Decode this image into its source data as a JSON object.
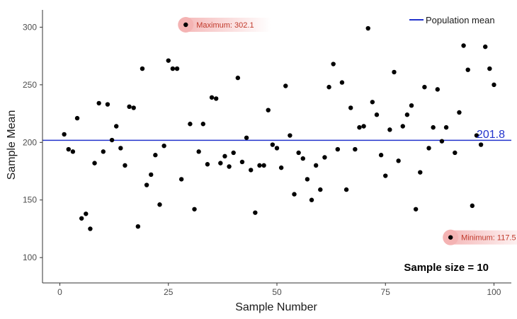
{
  "chart_data": {
    "type": "scatter",
    "xlabel": "Sample Number",
    "ylabel": "Sample Mean",
    "xlim": [
      -4,
      104
    ],
    "ylim": [
      78,
      315
    ],
    "x_ticks": [
      0,
      25,
      50,
      75,
      100
    ],
    "y_ticks": [
      100,
      150,
      200,
      250,
      300
    ],
    "grid": false,
    "legend": {
      "position": "top-right",
      "entries": [
        "Population mean"
      ]
    },
    "population_mean": {
      "label": "Population mean",
      "value": 201.8,
      "value_text": "201.8"
    },
    "annotations": {
      "maximum": {
        "label": "Maximum: 302.1",
        "x": 29,
        "y": 302.1
      },
      "minimum": {
        "label": "Minimum: 117.5",
        "x": 90,
        "y": 117.5
      }
    },
    "sample_size_text": "Sample size = 10",
    "colors": {
      "points": "#000000",
      "mean_line": "#2233cc",
      "annotation_text": "#c0392b",
      "annotation_glow": "#f4b3b3",
      "axis": "#333333"
    },
    "points": [
      {
        "x": 1,
        "y": 207
      },
      {
        "x": 2,
        "y": 194
      },
      {
        "x": 3,
        "y": 192
      },
      {
        "x": 4,
        "y": 221
      },
      {
        "x": 5,
        "y": 134
      },
      {
        "x": 6,
        "y": 138
      },
      {
        "x": 7,
        "y": 125
      },
      {
        "x": 8,
        "y": 182
      },
      {
        "x": 9,
        "y": 234
      },
      {
        "x": 10,
        "y": 192
      },
      {
        "x": 11,
        "y": 233
      },
      {
        "x": 12,
        "y": 202
      },
      {
        "x": 13,
        "y": 214
      },
      {
        "x": 14,
        "y": 195
      },
      {
        "x": 15,
        "y": 180
      },
      {
        "x": 16,
        "y": 231
      },
      {
        "x": 17,
        "y": 230
      },
      {
        "x": 18,
        "y": 127
      },
      {
        "x": 19,
        "y": 264
      },
      {
        "x": 20,
        "y": 163
      },
      {
        "x": 21,
        "y": 172
      },
      {
        "x": 22,
        "y": 189
      },
      {
        "x": 23,
        "y": 146
      },
      {
        "x": 24,
        "y": 197
      },
      {
        "x": 25,
        "y": 271
      },
      {
        "x": 26,
        "y": 264
      },
      {
        "x": 27,
        "y": 264
      },
      {
        "x": 28,
        "y": 168
      },
      {
        "x": 29,
        "y": 302.1
      },
      {
        "x": 30,
        "y": 216
      },
      {
        "x": 31,
        "y": 142
      },
      {
        "x": 32,
        "y": 192
      },
      {
        "x": 33,
        "y": 216
      },
      {
        "x": 34,
        "y": 181
      },
      {
        "x": 35,
        "y": 239
      },
      {
        "x": 36,
        "y": 238
      },
      {
        "x": 37,
        "y": 182
      },
      {
        "x": 38,
        "y": 188
      },
      {
        "x": 39,
        "y": 179
      },
      {
        "x": 40,
        "y": 191
      },
      {
        "x": 41,
        "y": 256
      },
      {
        "x": 42,
        "y": 183
      },
      {
        "x": 43,
        "y": 204
      },
      {
        "x": 44,
        "y": 176
      },
      {
        "x": 45,
        "y": 139
      },
      {
        "x": 46,
        "y": 180
      },
      {
        "x": 47,
        "y": 180
      },
      {
        "x": 48,
        "y": 228
      },
      {
        "x": 49,
        "y": 198
      },
      {
        "x": 50,
        "y": 195
      },
      {
        "x": 51,
        "y": 178
      },
      {
        "x": 52,
        "y": 249
      },
      {
        "x": 53,
        "y": 206
      },
      {
        "x": 54,
        "y": 155
      },
      {
        "x": 55,
        "y": 191
      },
      {
        "x": 56,
        "y": 186
      },
      {
        "x": 57,
        "y": 168
      },
      {
        "x": 58,
        "y": 150
      },
      {
        "x": 59,
        "y": 180
      },
      {
        "x": 60,
        "y": 159
      },
      {
        "x": 61,
        "y": 187
      },
      {
        "x": 62,
        "y": 248
      },
      {
        "x": 63,
        "y": 268
      },
      {
        "x": 64,
        "y": 194
      },
      {
        "x": 65,
        "y": 252
      },
      {
        "x": 66,
        "y": 159
      },
      {
        "x": 67,
        "y": 230
      },
      {
        "x": 68,
        "y": 194
      },
      {
        "x": 69,
        "y": 213
      },
      {
        "x": 70,
        "y": 214
      },
      {
        "x": 71,
        "y": 299
      },
      {
        "x": 72,
        "y": 235
      },
      {
        "x": 73,
        "y": 224
      },
      {
        "x": 74,
        "y": 189
      },
      {
        "x": 75,
        "y": 171
      },
      {
        "x": 76,
        "y": 211
      },
      {
        "x": 77,
        "y": 261
      },
      {
        "x": 78,
        "y": 184
      },
      {
        "x": 79,
        "y": 214
      },
      {
        "x": 80,
        "y": 224
      },
      {
        "x": 81,
        "y": 232
      },
      {
        "x": 82,
        "y": 142
      },
      {
        "x": 83,
        "y": 174
      },
      {
        "x": 84,
        "y": 248
      },
      {
        "x": 85,
        "y": 195
      },
      {
        "x": 86,
        "y": 213
      },
      {
        "x": 87,
        "y": 246
      },
      {
        "x": 88,
        "y": 201
      },
      {
        "x": 89,
        "y": 213
      },
      {
        "x": 90,
        "y": 117.5
      },
      {
        "x": 91,
        "y": 191
      },
      {
        "x": 92,
        "y": 226
      },
      {
        "x": 93,
        "y": 284
      },
      {
        "x": 94,
        "y": 263
      },
      {
        "x": 95,
        "y": 145
      },
      {
        "x": 96,
        "y": 206
      },
      {
        "x": 97,
        "y": 198
      },
      {
        "x": 98,
        "y": 283
      },
      {
        "x": 99,
        "y": 264
      },
      {
        "x": 100,
        "y": 250
      }
    ]
  }
}
